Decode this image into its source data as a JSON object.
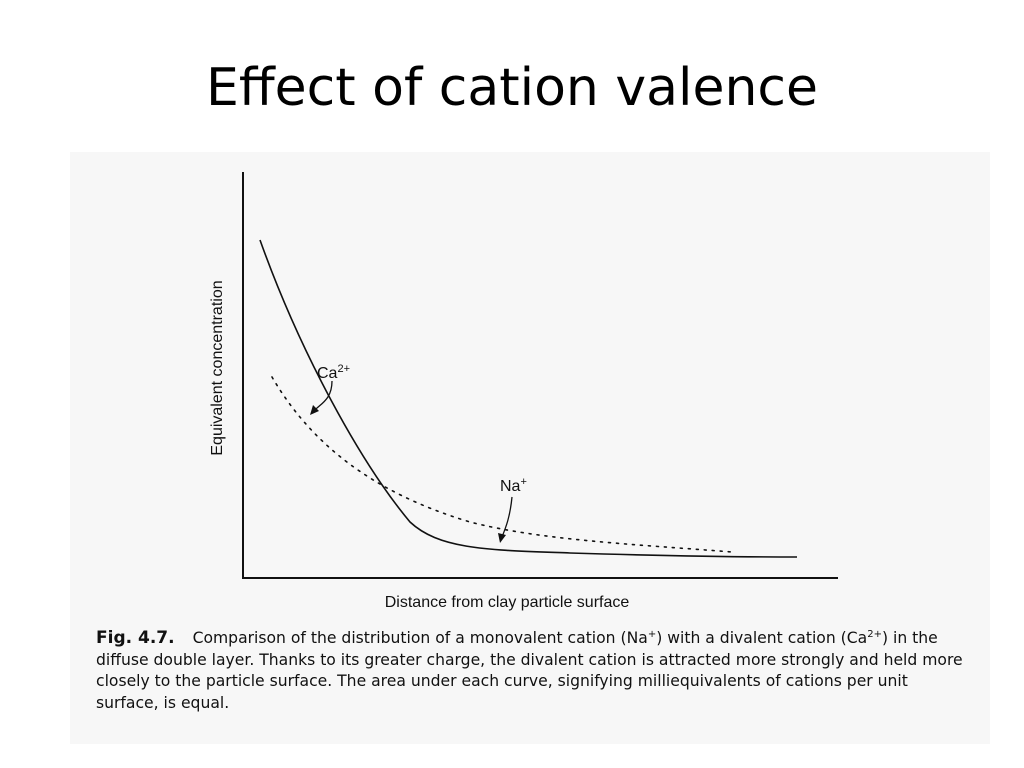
{
  "slide": {
    "title": "Effect of cation valence"
  },
  "figure": {
    "ylabel": "Equivalent concentration",
    "xlabel": "Distance from clay particle surface",
    "curves": [
      {
        "name": "Ca",
        "superscript": "2+",
        "style": "solid"
      },
      {
        "name": "Na",
        "superscript": "+",
        "style": "dotted"
      }
    ],
    "caption": {
      "fig_num": "Fig. 4.7.",
      "seg1": "Comparison of the distribution of a monovalent cation (Na",
      "sup1": "+",
      "seg2": ") with a divalent cation (Ca",
      "sup2": "2+",
      "seg3": ") in the diffuse double layer. Thanks to its greater charge, the divalent cation is attracted more strongly and held more closely to the particle surface. The area under each curve, signifying milliequivalents of cations per unit surface, is equal."
    }
  }
}
